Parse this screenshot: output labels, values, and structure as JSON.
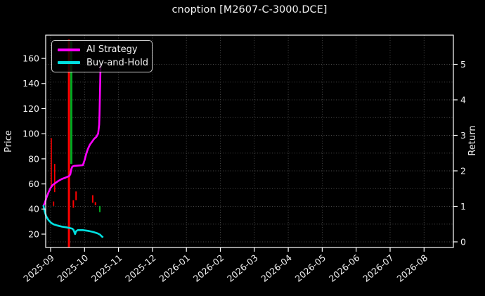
{
  "window": {
    "title": "cnoption [M2607-C-3000.DCE]"
  },
  "legend": {
    "items": [
      {
        "label": "AI Strategy",
        "color": "#ff00ff"
      },
      {
        "label": "Buy-and-Hold",
        "color": "#00e0e0"
      }
    ]
  },
  "chart_data": {
    "type": "line",
    "title": "cnoption [M2607-C-3000.DCE]",
    "background": "#000000",
    "text_color": "#f2f2f2",
    "x_axis": {
      "tick_labels": [
        "2025-09",
        "2025-10",
        "2025-11",
        "2025-12",
        "2026-01",
        "2026-02",
        "2026-03",
        "2026-04",
        "2026-05",
        "2026-06",
        "2026-07",
        "2026-08"
      ],
      "unit": "fractional months, 0 = 2025-09 tick",
      "tick_rotation_deg": -40
    },
    "left_axis": {
      "label": "Price",
      "ticks": [
        20,
        40,
        60,
        80,
        100,
        120,
        140,
        160
      ],
      "range_approx": [
        10,
        178
      ]
    },
    "right_axis": {
      "label": "Return",
      "ticks": [
        0,
        1,
        2,
        3,
        4,
        5
      ],
      "range_approx": [
        -0.16,
        5.8
      ]
    },
    "grid": {
      "style": "dotted",
      "color": "#4a4a4a",
      "vertical": "every month tick",
      "horizontal": "return axis every 0.5 from 0 to 5"
    },
    "series": [
      {
        "name": "AI Strategy",
        "axis": "return",
        "color": "#ff00ff",
        "width": 2.6,
        "points": [
          [
            -0.21,
            1.02
          ],
          [
            -0.17,
            1.1
          ],
          [
            -0.12,
            1.25
          ],
          [
            -0.06,
            1.4
          ],
          [
            0.0,
            1.52
          ],
          [
            0.06,
            1.6
          ],
          [
            0.13,
            1.65
          ],
          [
            0.22,
            1.71
          ],
          [
            0.33,
            1.77
          ],
          [
            0.44,
            1.81
          ],
          [
            0.54,
            1.85
          ],
          [
            0.58,
            1.9
          ],
          [
            0.61,
            2.05
          ],
          [
            0.64,
            2.12
          ],
          [
            0.7,
            2.14
          ],
          [
            0.95,
            2.16
          ],
          [
            1.0,
            2.3
          ],
          [
            1.05,
            2.48
          ],
          [
            1.1,
            2.62
          ],
          [
            1.16,
            2.74
          ],
          [
            1.22,
            2.82
          ],
          [
            1.28,
            2.9
          ],
          [
            1.35,
            2.96
          ],
          [
            1.4,
            3.05
          ],
          [
            1.43,
            3.3
          ],
          [
            1.44,
            3.6
          ],
          [
            1.45,
            4.0
          ],
          [
            1.46,
            4.45
          ],
          [
            1.465,
            4.75
          ],
          [
            1.47,
            4.95
          ]
        ]
      },
      {
        "name": "Buy-and-Hold",
        "axis": "return",
        "color": "#00e0e0",
        "width": 2.6,
        "points": [
          [
            -0.21,
            1.01
          ],
          [
            -0.18,
            0.88
          ],
          [
            -0.13,
            0.72
          ],
          [
            -0.06,
            0.61
          ],
          [
            0.02,
            0.53
          ],
          [
            0.1,
            0.49
          ],
          [
            0.2,
            0.46
          ],
          [
            0.33,
            0.43
          ],
          [
            0.46,
            0.41
          ],
          [
            0.56,
            0.39
          ],
          [
            0.64,
            0.37
          ],
          [
            0.68,
            0.33
          ],
          [
            0.72,
            0.22
          ],
          [
            0.75,
            0.3
          ],
          [
            0.8,
            0.33
          ],
          [
            0.95,
            0.33
          ],
          [
            1.1,
            0.31
          ],
          [
            1.25,
            0.28
          ],
          [
            1.38,
            0.24
          ],
          [
            1.46,
            0.2
          ],
          [
            1.51,
            0.15
          ],
          [
            1.53,
            0.14
          ]
        ]
      }
    ],
    "candlesticks": {
      "axis": "price",
      "down_color": "#ff0000",
      "up_color": "#00aa22",
      "bars": [
        {
          "x": 0.02,
          "high": 96.5,
          "low": 57.0,
          "dir": "down",
          "w": 1.6
        },
        {
          "x": 0.09,
          "high": 46.0,
          "low": 42.5,
          "dir": "down",
          "w": 1.6
        },
        {
          "x": 0.12,
          "high": 76.0,
          "low": 53.5,
          "dir": "down",
          "w": 1.6
        },
        {
          "x": 0.54,
          "high": 175.0,
          "low": 9.5,
          "dir": "down",
          "w": 3
        },
        {
          "x": 0.61,
          "high": 174.0,
          "low": 76.0,
          "dir": "up",
          "w": 3
        },
        {
          "x": 0.67,
          "high": 47.0,
          "low": 41.0,
          "dir": "down",
          "w": 2
        },
        {
          "x": 0.75,
          "high": 54.0,
          "low": 47.0,
          "dir": "down",
          "w": 2
        },
        {
          "x": 1.24,
          "high": 51.0,
          "low": 45.0,
          "dir": "down",
          "w": 2
        },
        {
          "x": 1.32,
          "high": 45.5,
          "low": 43.0,
          "dir": "down",
          "w": 2
        },
        {
          "x": 1.45,
          "high": 42.5,
          "low": 37.5,
          "dir": "up",
          "w": 2
        }
      ]
    }
  }
}
